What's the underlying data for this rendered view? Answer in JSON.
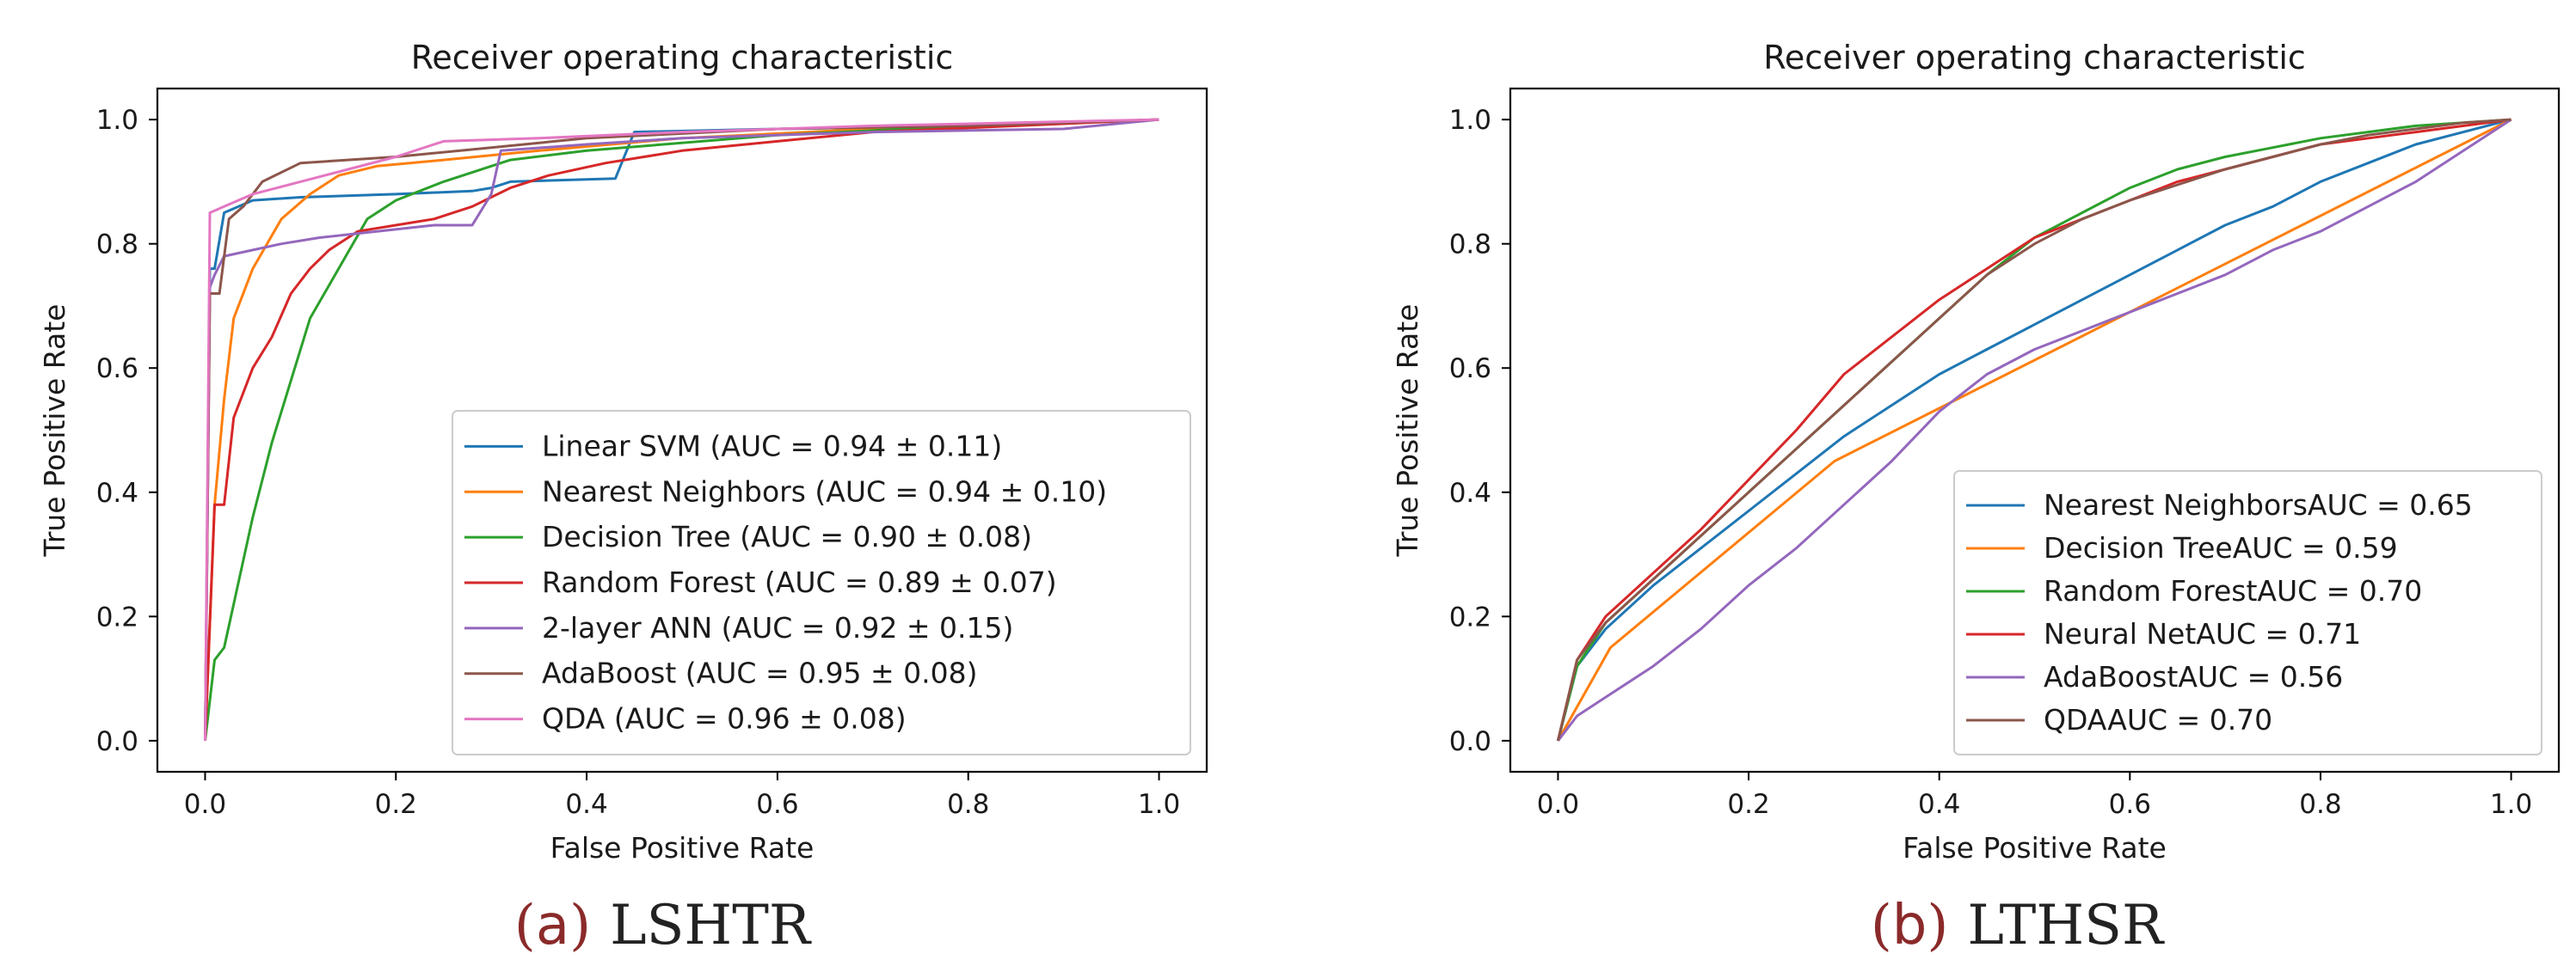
{
  "chart_data": [
    {
      "type": "line",
      "title": "Receiver operating characteristic",
      "xlabel": "False Positive Rate",
      "ylabel": "True Positive Rate",
      "xlim": [
        -0.05,
        1.05
      ],
      "ylim": [
        -0.05,
        1.05
      ],
      "xticks": [
        "0.0",
        "0.2",
        "0.4",
        "0.6",
        "0.8",
        "1.0"
      ],
      "yticks": [
        "0.0",
        "0.2",
        "0.4",
        "0.6",
        "0.8",
        "1.0"
      ],
      "legend_position": "lower-right",
      "caption": {
        "letter": "a",
        "text": "LSHTR"
      },
      "series": [
        {
          "name": "Linear SVM (AUC = 0.94 ± 0.11)",
          "color": "#1f77b4",
          "x": [
            0,
            0.005,
            0.01,
            0.02,
            0.05,
            0.1,
            0.2,
            0.28,
            0.3,
            0.32,
            0.43,
            0.45,
            0.6,
            0.8,
            1.0
          ],
          "y": [
            0,
            0.76,
            0.76,
            0.85,
            0.87,
            0.875,
            0.88,
            0.885,
            0.89,
            0.9,
            0.905,
            0.98,
            0.985,
            0.99,
            1.0
          ]
        },
        {
          "name": "Nearest Neighbors (AUC = 0.94 ± 0.10)",
          "color": "#ff7f0e",
          "x": [
            0,
            0.01,
            0.02,
            0.03,
            0.05,
            0.08,
            0.11,
            0.14,
            0.18,
            0.25,
            0.35,
            0.5,
            0.7,
            1.0
          ],
          "y": [
            0,
            0.38,
            0.55,
            0.68,
            0.76,
            0.84,
            0.88,
            0.91,
            0.925,
            0.935,
            0.95,
            0.97,
            0.985,
            1.0
          ]
        },
        {
          "name": "Decision Tree (AUC = 0.90 ± 0.08)",
          "color": "#2ca02c",
          "x": [
            0,
            0.01,
            0.02,
            0.03,
            0.05,
            0.07,
            0.09,
            0.11,
            0.14,
            0.17,
            0.2,
            0.25,
            0.32,
            0.4,
            0.6,
            0.8,
            1.0
          ],
          "y": [
            0,
            0.13,
            0.15,
            0.22,
            0.36,
            0.48,
            0.58,
            0.68,
            0.76,
            0.84,
            0.87,
            0.9,
            0.935,
            0.95,
            0.975,
            0.99,
            1.0
          ]
        },
        {
          "name": "Random Forest (AUC = 0.89 ± 0.07)",
          "color": "#d62728",
          "x": [
            0,
            0.01,
            0.02,
            0.03,
            0.05,
            0.07,
            0.09,
            0.11,
            0.13,
            0.16,
            0.2,
            0.24,
            0.28,
            0.32,
            0.36,
            0.42,
            0.5,
            0.6,
            0.7,
            0.85,
            1.0
          ],
          "y": [
            0,
            0.38,
            0.38,
            0.52,
            0.6,
            0.65,
            0.72,
            0.76,
            0.79,
            0.82,
            0.83,
            0.84,
            0.86,
            0.89,
            0.91,
            0.93,
            0.95,
            0.965,
            0.98,
            0.99,
            1.0
          ]
        },
        {
          "name": "2-layer ANN (AUC = 0.92 ± 0.15)",
          "color": "#9467bd",
          "x": [
            0,
            0.005,
            0.01,
            0.02,
            0.05,
            0.08,
            0.12,
            0.18,
            0.24,
            0.28,
            0.3,
            0.31,
            0.4,
            0.5,
            0.7,
            0.9,
            1.0
          ],
          "y": [
            0,
            0.73,
            0.75,
            0.78,
            0.79,
            0.8,
            0.81,
            0.82,
            0.83,
            0.83,
            0.88,
            0.95,
            0.96,
            0.97,
            0.98,
            0.985,
            1.0
          ]
        },
        {
          "name": "AdaBoost (AUC = 0.95 ± 0.08)",
          "color": "#8c564b",
          "x": [
            0,
            0.005,
            0.015,
            0.025,
            0.04,
            0.06,
            0.1,
            0.2,
            0.3,
            0.4,
            0.6,
            0.8,
            1.0
          ],
          "y": [
            0,
            0.72,
            0.72,
            0.84,
            0.86,
            0.9,
            0.93,
            0.94,
            0.955,
            0.97,
            0.985,
            0.99,
            1.0
          ]
        },
        {
          "name": "QDA (AUC = 0.96 ± 0.08)",
          "color": "#e377c2",
          "x": [
            0,
            0.005,
            0.02,
            0.05,
            0.1,
            0.15,
            0.2,
            0.25,
            0.35,
            0.5,
            0.7,
            1.0
          ],
          "y": [
            0,
            0.85,
            0.86,
            0.88,
            0.9,
            0.92,
            0.94,
            0.965,
            0.97,
            0.98,
            0.99,
            1.0
          ]
        }
      ]
    },
    {
      "type": "line",
      "title": "Receiver operating characteristic",
      "xlabel": "False Positive Rate",
      "ylabel": "True Positive Rate",
      "xlim": [
        -0.05,
        1.05
      ],
      "ylim": [
        -0.05,
        1.05
      ],
      "xticks": [
        "0.0",
        "0.2",
        "0.4",
        "0.6",
        "0.8",
        "1.0"
      ],
      "yticks": [
        "0.0",
        "0.2",
        "0.4",
        "0.6",
        "0.8",
        "1.0"
      ],
      "legend_position": "lower-right",
      "caption": {
        "letter": "b",
        "text": "LTHSR"
      },
      "series": [
        {
          "name": "Nearest NeighborsAUC = 0.65",
          "color": "#1f77b4",
          "x": [
            0,
            0.02,
            0.05,
            0.1,
            0.15,
            0.2,
            0.25,
            0.3,
            0.35,
            0.4,
            0.45,
            0.5,
            0.55,
            0.6,
            0.65,
            0.7,
            0.75,
            0.8,
            0.85,
            0.9,
            0.95,
            1.0
          ],
          "y": [
            0,
            0.12,
            0.18,
            0.25,
            0.31,
            0.37,
            0.43,
            0.49,
            0.54,
            0.59,
            0.63,
            0.67,
            0.71,
            0.75,
            0.79,
            0.83,
            0.86,
            0.9,
            0.93,
            0.96,
            0.98,
            1.0
          ]
        },
        {
          "name": "Decision TreeAUC = 0.59",
          "color": "#ff7f0e",
          "x": [
            0,
            0.055,
            0.29,
            1.0
          ],
          "y": [
            0,
            0.15,
            0.45,
            1.0
          ]
        },
        {
          "name": "Random ForestAUC = 0.70",
          "color": "#2ca02c",
          "x": [
            0,
            0.02,
            0.05,
            0.1,
            0.15,
            0.2,
            0.25,
            0.3,
            0.35,
            0.4,
            0.45,
            0.5,
            0.55,
            0.6,
            0.65,
            0.7,
            0.75,
            0.8,
            0.85,
            0.9,
            0.95,
            1.0
          ],
          "y": [
            0,
            0.12,
            0.19,
            0.26,
            0.33,
            0.4,
            0.47,
            0.54,
            0.61,
            0.68,
            0.75,
            0.81,
            0.85,
            0.89,
            0.92,
            0.94,
            0.955,
            0.97,
            0.98,
            0.99,
            0.995,
            1.0
          ]
        },
        {
          "name": "Neural NetAUC = 0.71",
          "color": "#d62728",
          "x": [
            0,
            0.02,
            0.05,
            0.1,
            0.15,
            0.2,
            0.25,
            0.3,
            0.35,
            0.4,
            0.45,
            0.5,
            0.55,
            0.6,
            0.65,
            0.7,
            0.75,
            0.8,
            0.85,
            0.9,
            0.95,
            1.0
          ],
          "y": [
            0,
            0.13,
            0.2,
            0.27,
            0.34,
            0.42,
            0.5,
            0.59,
            0.65,
            0.71,
            0.76,
            0.81,
            0.84,
            0.87,
            0.9,
            0.92,
            0.94,
            0.96,
            0.97,
            0.98,
            0.99,
            1.0
          ]
        },
        {
          "name": "AdaBoostAUC = 0.56",
          "color": "#9467bd",
          "x": [
            0,
            0.02,
            0.05,
            0.1,
            0.15,
            0.2,
            0.25,
            0.3,
            0.35,
            0.4,
            0.45,
            0.5,
            0.55,
            0.6,
            0.65,
            0.7,
            0.75,
            0.8,
            0.85,
            0.9,
            0.95,
            1.0
          ],
          "y": [
            0,
            0.04,
            0.07,
            0.12,
            0.18,
            0.25,
            0.31,
            0.38,
            0.45,
            0.53,
            0.59,
            0.63,
            0.66,
            0.69,
            0.72,
            0.75,
            0.79,
            0.82,
            0.86,
            0.9,
            0.95,
            1.0
          ]
        },
        {
          "name": "QDAAUC = 0.70",
          "color": "#8c564b",
          "x": [
            0,
            0.02,
            0.05,
            0.1,
            0.15,
            0.2,
            0.25,
            0.3,
            0.35,
            0.4,
            0.45,
            0.5,
            0.55,
            0.6,
            0.65,
            0.7,
            0.75,
            0.8,
            0.85,
            0.9,
            0.95,
            1.0
          ],
          "y": [
            0,
            0.13,
            0.19,
            0.26,
            0.33,
            0.4,
            0.47,
            0.54,
            0.61,
            0.68,
            0.75,
            0.8,
            0.84,
            0.87,
            0.895,
            0.92,
            0.94,
            0.96,
            0.975,
            0.985,
            0.995,
            1.0
          ]
        }
      ]
    }
  ]
}
